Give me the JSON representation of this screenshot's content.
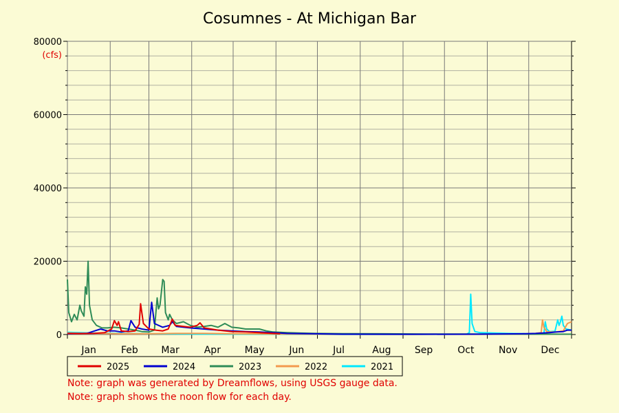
{
  "chart_data": {
    "type": "line",
    "title": "Cosumnes - At Michigan Bar",
    "unit": "(cfs)",
    "ylim": [
      0,
      80000
    ],
    "yticks": [
      0,
      20000,
      40000,
      60000,
      80000
    ],
    "xlim": [
      1,
      366
    ],
    "months": [
      {
        "label": "Jan",
        "start": 1
      },
      {
        "label": "Feb",
        "start": 32
      },
      {
        "label": "Mar",
        "start": 60
      },
      {
        "label": "Apr",
        "start": 91
      },
      {
        "label": "May",
        "start": 121
      },
      {
        "label": "Jun",
        "start": 152
      },
      {
        "label": "Jul",
        "start": 182
      },
      {
        "label": "Aug",
        "start": 213
      },
      {
        "label": "Sep",
        "start": 244
      },
      {
        "label": "Oct",
        "start": 274
      },
      {
        "label": "Nov",
        "start": 305
      },
      {
        "label": "Dec",
        "start": 335
      }
    ],
    "grid": true,
    "legend_position": "bottom",
    "series": [
      {
        "name": "2025",
        "color": "#e00000",
        "points": [
          [
            1,
            300
          ],
          [
            10,
            250
          ],
          [
            20,
            300
          ],
          [
            28,
            500
          ],
          [
            33,
            1500
          ],
          [
            35,
            3800
          ],
          [
            37,
            2500
          ],
          [
            38,
            3500
          ],
          [
            40,
            1000
          ],
          [
            45,
            800
          ],
          [
            50,
            1000
          ],
          [
            53,
            2800
          ],
          [
            54,
            8400
          ],
          [
            56,
            3000
          ],
          [
            60,
            1500
          ],
          [
            65,
            1200
          ],
          [
            70,
            1000
          ],
          [
            74,
            1500
          ],
          [
            77,
            4200
          ],
          [
            79,
            2500
          ],
          [
            85,
            2200
          ],
          [
            90,
            2000
          ],
          [
            95,
            2500
          ],
          [
            97,
            3200
          ],
          [
            100,
            1800
          ],
          [
            110,
            1200
          ],
          [
            120,
            800
          ],
          [
            130,
            700
          ],
          [
            140,
            500
          ],
          [
            150,
            300
          ],
          [
            155,
            200
          ]
        ]
      },
      {
        "name": "2024",
        "color": "#0000d0",
        "points": [
          [
            1,
            200
          ],
          [
            15,
            300
          ],
          [
            20,
            900
          ],
          [
            25,
            1500
          ],
          [
            30,
            1000
          ],
          [
            35,
            1000
          ],
          [
            40,
            700
          ],
          [
            45,
            1000
          ],
          [
            47,
            3800
          ],
          [
            50,
            2000
          ],
          [
            55,
            1500
          ],
          [
            60,
            1200
          ],
          [
            62,
            8800
          ],
          [
            64,
            3000
          ],
          [
            70,
            2000
          ],
          [
            75,
            2500
          ],
          [
            77,
            3500
          ],
          [
            80,
            2200
          ],
          [
            90,
            1800
          ],
          [
            100,
            1500
          ],
          [
            110,
            1200
          ],
          [
            120,
            1000
          ],
          [
            130,
            800
          ],
          [
            140,
            700
          ],
          [
            150,
            500
          ],
          [
            160,
            300
          ],
          [
            180,
            200
          ],
          [
            200,
            100
          ],
          [
            250,
            80
          ],
          [
            300,
            100
          ],
          [
            330,
            200
          ],
          [
            340,
            300
          ],
          [
            350,
            500
          ],
          [
            355,
            700
          ],
          [
            360,
            800
          ],
          [
            363,
            1200
          ],
          [
            366,
            1200
          ]
        ]
      },
      {
        "name": "2023",
        "color": "#2e8b57",
        "points": [
          [
            1,
            15000
          ],
          [
            2,
            6000
          ],
          [
            4,
            3500
          ],
          [
            6,
            5500
          ],
          [
            8,
            4000
          ],
          [
            10,
            8000
          ],
          [
            11,
            6500
          ],
          [
            13,
            5000
          ],
          [
            14,
            13000
          ],
          [
            15,
            11000
          ],
          [
            16,
            20000
          ],
          [
            17,
            8000
          ],
          [
            19,
            4000
          ],
          [
            22,
            2500
          ],
          [
            26,
            1800
          ],
          [
            30,
            1800
          ],
          [
            35,
            2000
          ],
          [
            40,
            1800
          ],
          [
            45,
            1500
          ],
          [
            50,
            1200
          ],
          [
            55,
            800
          ],
          [
            60,
            700
          ],
          [
            64,
            1200
          ],
          [
            66,
            10000
          ],
          [
            67,
            7000
          ],
          [
            68,
            8000
          ],
          [
            70,
            15000
          ],
          [
            71,
            14500
          ],
          [
            72,
            6000
          ],
          [
            74,
            4000
          ],
          [
            75,
            5500
          ],
          [
            77,
            4000
          ],
          [
            80,
            3000
          ],
          [
            85,
            3500
          ],
          [
            90,
            2500
          ],
          [
            95,
            2000
          ],
          [
            100,
            2200
          ],
          [
            105,
            2500
          ],
          [
            110,
            2000
          ],
          [
            115,
            3000
          ],
          [
            120,
            2000
          ],
          [
            125,
            1800
          ],
          [
            130,
            1500
          ],
          [
            135,
            1500
          ],
          [
            140,
            1500
          ],
          [
            145,
            1000
          ],
          [
            150,
            700
          ],
          [
            155,
            600
          ],
          [
            160,
            500
          ],
          [
            170,
            400
          ],
          [
            180,
            300
          ],
          [
            200,
            250
          ],
          [
            230,
            200
          ],
          [
            260,
            150
          ],
          [
            300,
            150
          ],
          [
            366,
            100
          ]
        ]
      },
      {
        "name": "2022",
        "color": "#f39a4e",
        "points": [
          [
            1,
            400
          ],
          [
            20,
            300
          ],
          [
            40,
            200
          ],
          [
            60,
            200
          ],
          [
            80,
            300
          ],
          [
            100,
            300
          ],
          [
            120,
            200
          ],
          [
            150,
            150
          ],
          [
            200,
            80
          ],
          [
            250,
            60
          ],
          [
            300,
            80
          ],
          [
            330,
            150
          ],
          [
            340,
            300
          ],
          [
            344,
            500
          ],
          [
            345,
            4000
          ],
          [
            346,
            2000
          ],
          [
            348,
            800
          ],
          [
            350,
            700
          ],
          [
            355,
            700
          ],
          [
            360,
            1000
          ],
          [
            363,
            3000
          ],
          [
            366,
            3500
          ]
        ]
      },
      {
        "name": "2021",
        "color": "#00e8ff",
        "points": [
          [
            1,
            600
          ],
          [
            20,
            400
          ],
          [
            40,
            300
          ],
          [
            60,
            200
          ],
          [
            80,
            150
          ],
          [
            100,
            100
          ],
          [
            150,
            80
          ],
          [
            200,
            50
          ],
          [
            250,
            50
          ],
          [
            290,
            100
          ],
          [
            292,
            500
          ],
          [
            293,
            11000
          ],
          [
            294,
            3000
          ],
          [
            296,
            800
          ],
          [
            300,
            500
          ],
          [
            320,
            300
          ],
          [
            340,
            200
          ],
          [
            346,
            300
          ],
          [
            347,
            3500
          ],
          [
            348,
            1500
          ],
          [
            350,
            800
          ],
          [
            354,
            900
          ],
          [
            356,
            4000
          ],
          [
            357,
            2500
          ],
          [
            358,
            3500
          ],
          [
            359,
            5000
          ],
          [
            360,
            2500
          ],
          [
            362,
            1500
          ],
          [
            366,
            1200
          ]
        ]
      }
    ]
  },
  "notes": [
    "Note: graph was generated by Dreamflows, using USGS gauge data.",
    "Note: graph shows the noon flow for each day."
  ]
}
